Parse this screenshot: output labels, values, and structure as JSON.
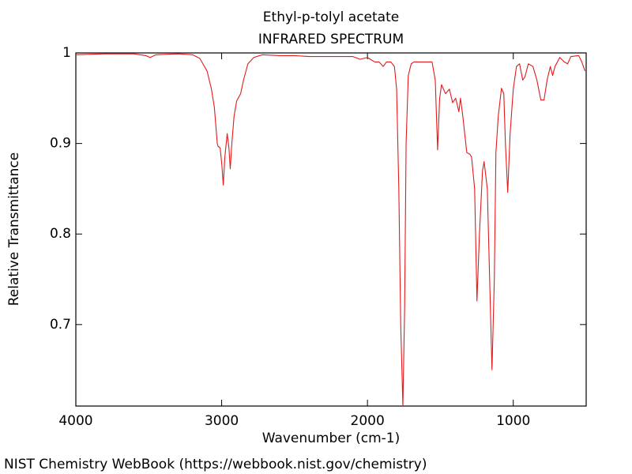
{
  "chart_data": {
    "type": "line",
    "title": "Ethyl-p-tolyl acetate",
    "subtitle": "INFRARED SPECTRUM",
    "x_label": "Wavenumber (cm-1)",
    "y_label": "Relative Transmittance",
    "source": "NIST Chemistry WebBook (https://webbook.nist.gov/chemistry)",
    "color": "#e31a1c",
    "x": [
      4000,
      3800,
      3600,
      3520,
      3490,
      3450,
      3300,
      3200,
      3150,
      3100,
      3070,
      3050,
      3040,
      3030,
      3025,
      3010,
      2998,
      2989,
      2978,
      2962,
      2950,
      2941,
      2930,
      2915,
      2897,
      2870,
      2850,
      2820,
      2780,
      2720,
      2600,
      2500,
      2400,
      2300,
      2200,
      2100,
      2050,
      2000,
      1950,
      1920,
      1892,
      1870,
      1840,
      1815,
      1800,
      1785,
      1772,
      1757,
      1745,
      1735,
      1720,
      1700,
      1681,
      1600,
      1557,
      1535,
      1519,
      1505,
      1492,
      1465,
      1438,
      1416,
      1395,
      1373,
      1362,
      1346,
      1319,
      1297,
      1286,
      1265,
      1249,
      1232,
      1211,
      1200,
      1178,
      1162,
      1146,
      1130,
      1119,
      1103,
      1081,
      1065,
      1054,
      1038,
      1022,
      1000,
      978,
      957,
      935,
      919,
      897,
      865,
      838,
      811,
      789,
      768,
      746,
      730,
      714,
      681,
      649,
      627,
      605,
      551,
      530,
      508
    ],
    "values": [
      0.998,
      0.999,
      0.999,
      0.997,
      0.995,
      0.998,
      0.999,
      0.998,
      0.994,
      0.98,
      0.96,
      0.94,
      0.92,
      0.9,
      0.897,
      0.895,
      0.875,
      0.854,
      0.885,
      0.911,
      0.895,
      0.872,
      0.9,
      0.93,
      0.947,
      0.955,
      0.97,
      0.988,
      0.995,
      0.998,
      0.997,
      0.997,
      0.996,
      0.996,
      0.996,
      0.996,
      0.993,
      0.995,
      0.99,
      0.99,
      0.985,
      0.99,
      0.99,
      0.985,
      0.96,
      0.85,
      0.7,
      0.61,
      0.72,
      0.9,
      0.975,
      0.988,
      0.99,
      0.99,
      0.99,
      0.97,
      0.893,
      0.95,
      0.965,
      0.955,
      0.96,
      0.945,
      0.95,
      0.935,
      0.95,
      0.93,
      0.89,
      0.888,
      0.885,
      0.85,
      0.726,
      0.8,
      0.87,
      0.88,
      0.85,
      0.75,
      0.65,
      0.75,
      0.89,
      0.93,
      0.961,
      0.955,
      0.9,
      0.846,
      0.91,
      0.96,
      0.985,
      0.988,
      0.97,
      0.974,
      0.988,
      0.985,
      0.97,
      0.948,
      0.948,
      0.97,
      0.985,
      0.975,
      0.985,
      0.995,
      0.99,
      0.988,
      0.996,
      0.997,
      0.99,
      0.98
    ],
    "xlim": [
      4000,
      500
    ],
    "xticks": [
      4000,
      3000,
      2000,
      1000
    ],
    "ylim": [
      0.61,
      1
    ],
    "yticks": [
      1,
      0.9,
      0.8,
      0.7
    ]
  }
}
